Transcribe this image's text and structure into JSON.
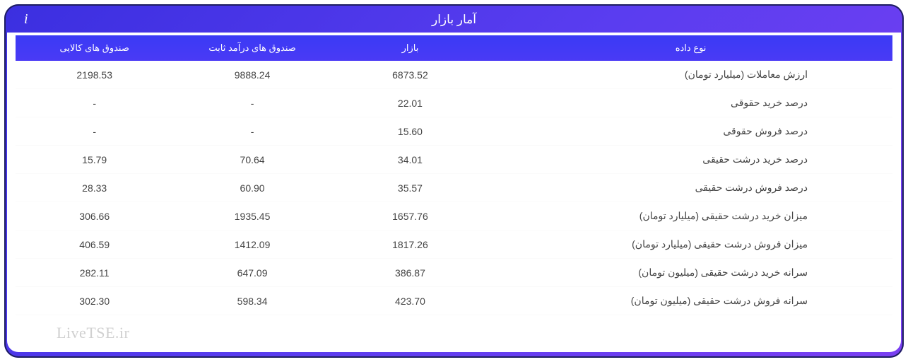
{
  "header": {
    "title": "آمار بازار",
    "info_icon": "i"
  },
  "table": {
    "columns": [
      "نوع داده",
      "بازار",
      "صندوق های درآمد ثابت",
      "صندوق های کالایی"
    ],
    "header_bg_gradient": [
      "#3a3af5",
      "#4a3af5"
    ],
    "header_text_color": "#ffffff",
    "row_text_color": "#444444",
    "font_size_header": 13,
    "font_size_body": 14,
    "rows": [
      {
        "label": "ارزش معاملات (میلیارد تومان)",
        "bazaar": "6873.52",
        "fixed": "9888.24",
        "commodity": "2198.53"
      },
      {
        "label": "درصد خرید حقوقی",
        "bazaar": "22.01",
        "fixed": "-",
        "commodity": "-"
      },
      {
        "label": "درصد فروش حقوقی",
        "bazaar": "15.60",
        "fixed": "-",
        "commodity": "-"
      },
      {
        "label": "درصد خرید درشت حقیقی",
        "bazaar": "34.01",
        "fixed": "70.64",
        "commodity": "15.79"
      },
      {
        "label": "درصد فروش درشت حقیقی",
        "bazaar": "35.57",
        "fixed": "60.90",
        "commodity": "28.33"
      },
      {
        "label": "میزان خرید درشت حقیقی (میلیارد تومان)",
        "bazaar": "1657.76",
        "fixed": "1935.45",
        "commodity": "306.66"
      },
      {
        "label": "میزان فروش درشت حقیقی (میلیارد تومان)",
        "bazaar": "1817.26",
        "fixed": "1412.09",
        "commodity": "406.59"
      },
      {
        "label": "سرانه خرید درشت حقیقی (میلیون تومان)",
        "bazaar": "386.87",
        "fixed": "647.09",
        "commodity": "282.11"
      },
      {
        "label": "سرانه فروش درشت حقیقی (میلیون تومان)",
        "bazaar": "423.70",
        "fixed": "598.34",
        "commodity": "302.30"
      }
    ]
  },
  "panel": {
    "gradient_colors": [
      "#3b2fe0",
      "#5a3df0",
      "#7a3ff2"
    ],
    "border_radius": 20,
    "border_color": "#1e1e60"
  },
  "watermark": {
    "text": "LiveTSE.ir",
    "color": "#d0d0d0",
    "font_size": 22
  }
}
